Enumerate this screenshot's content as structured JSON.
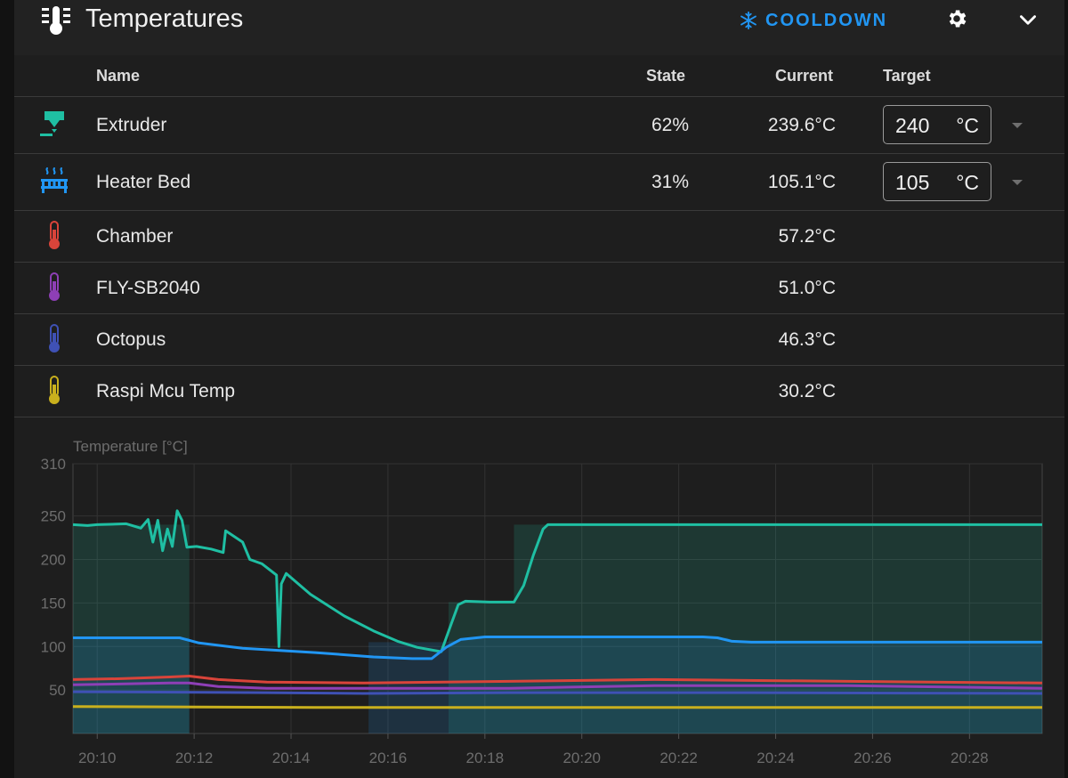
{
  "header": {
    "title": "Temperatures",
    "cooldown_label": "COOLDOWN",
    "icons": [
      "thermometer-lines-icon",
      "snowflake-icon",
      "gear-icon",
      "chevron-down-icon"
    ]
  },
  "table": {
    "columns": {
      "name": "Name",
      "state": "State",
      "current": "Current",
      "target": "Target"
    },
    "rows": [
      {
        "icon": "extruder-icon",
        "color": "#1fbfa3",
        "name": "Extruder",
        "state": "62%",
        "current": "239.6°C",
        "target": "240",
        "unit": "°C"
      },
      {
        "icon": "heater-bed-icon",
        "color": "#2196f3",
        "name": "Heater Bed",
        "state": "31%",
        "current": "105.1°C",
        "target": "105",
        "unit": "°C"
      },
      {
        "icon": "thermometer-icon",
        "color": "#d9443a",
        "name": "Chamber",
        "current": "57.2°C"
      },
      {
        "icon": "thermometer-icon",
        "color": "#8e3fb6",
        "name": "FLY-SB2040",
        "current": "51.0°C"
      },
      {
        "icon": "thermometer-icon",
        "color": "#3f51b5",
        "name": "Octopus",
        "current": "46.3°C"
      },
      {
        "icon": "thermometer-icon",
        "color": "#c9b01d",
        "name": "Raspi Mcu Temp",
        "current": "30.2°C"
      }
    ]
  },
  "chart_data": {
    "type": "line",
    "ylabel": "Temperature [°C]",
    "ylim": [
      0,
      310
    ],
    "yticks": [
      50,
      100,
      150,
      200,
      250,
      310
    ],
    "xlim": [
      "20:09.5",
      "20:29.5"
    ],
    "xticks": [
      "20:10",
      "20:12",
      "20:14",
      "20:16",
      "20:18",
      "20:20",
      "20:22",
      "20:24",
      "20:26",
      "20:28"
    ],
    "grid": true,
    "series": [
      {
        "color": "#1fbfa3",
        "points": [
          [
            0,
            240
          ],
          [
            0.3,
            239
          ],
          [
            0.5,
            240
          ],
          [
            1.1,
            241
          ],
          [
            1.4,
            236
          ],
          [
            1.55,
            246
          ],
          [
            1.65,
            220
          ],
          [
            1.75,
            245
          ],
          [
            1.85,
            210
          ],
          [
            1.95,
            235
          ],
          [
            2.05,
            215
          ],
          [
            2.15,
            256
          ],
          [
            2.25,
            245
          ],
          [
            2.35,
            214
          ],
          [
            2.55,
            215
          ],
          [
            2.85,
            212
          ],
          [
            3.1,
            208
          ],
          [
            3.15,
            233
          ],
          [
            3.5,
            220
          ],
          [
            3.65,
            200
          ],
          [
            3.9,
            195
          ],
          [
            4.2,
            182
          ],
          [
            4.25,
            100
          ],
          [
            4.3,
            172
          ],
          [
            4.4,
            184
          ],
          [
            4.9,
            160
          ],
          [
            5.6,
            135
          ],
          [
            6.2,
            118
          ],
          [
            6.7,
            106
          ],
          [
            7.1,
            99
          ],
          [
            7.6,
            94
          ],
          [
            7.8,
            125
          ],
          [
            7.95,
            148
          ],
          [
            8.1,
            152
          ],
          [
            8.6,
            151
          ],
          [
            9.1,
            151
          ],
          [
            9.3,
            170
          ],
          [
            9.5,
            205
          ],
          [
            9.7,
            235
          ],
          [
            9.8,
            240
          ],
          [
            10.5,
            240
          ],
          [
            20,
            240
          ]
        ]
      },
      {
        "color": "#1fbfa3",
        "fill": true,
        "band": [
          [
            0,
            240
          ],
          [
            2.4,
            240
          ],
          [
            2.4,
            0
          ],
          [
            7.75,
            0
          ],
          [
            7.75,
            151
          ],
          [
            9.1,
            151
          ],
          [
            9.1,
            240
          ],
          [
            20,
            240
          ]
        ]
      },
      {
        "color": "#2196f3",
        "points": [
          [
            0,
            110
          ],
          [
            2.2,
            110
          ],
          [
            2.6,
            104
          ],
          [
            3.5,
            98
          ],
          [
            5,
            93
          ],
          [
            6.2,
            88
          ],
          [
            7,
            86
          ],
          [
            7.4,
            86
          ],
          [
            7.7,
            99
          ],
          [
            8,
            108
          ],
          [
            8.5,
            111
          ],
          [
            10,
            111
          ],
          [
            13,
            111
          ],
          [
            13.3,
            110
          ],
          [
            13.6,
            106
          ],
          [
            14,
            105
          ],
          [
            16,
            105
          ],
          [
            20,
            105
          ]
        ]
      },
      {
        "color": "#2196f3",
        "fill": true,
        "band": [
          [
            0,
            110
          ],
          [
            2.4,
            110
          ],
          [
            2.4,
            0
          ],
          [
            6.1,
            0
          ],
          [
            6.1,
            105
          ],
          [
            7.6,
            105
          ],
          [
            8.6,
            110
          ],
          [
            13.5,
            110
          ],
          [
            13.7,
            105
          ],
          [
            20,
            105
          ]
        ]
      },
      {
        "color": "#d9443a",
        "points": [
          [
            0,
            62
          ],
          [
            1,
            63
          ],
          [
            2,
            65
          ],
          [
            2.4,
            66
          ],
          [
            3,
            62
          ],
          [
            4,
            59
          ],
          [
            6,
            58
          ],
          [
            9,
            60
          ],
          [
            12,
            62
          ],
          [
            16,
            60
          ],
          [
            20,
            58
          ]
        ]
      },
      {
        "color": "#8e3fb6",
        "points": [
          [
            0,
            56
          ],
          [
            2,
            58
          ],
          [
            2.4,
            58
          ],
          [
            3,
            54
          ],
          [
            4,
            52
          ],
          [
            6,
            52
          ],
          [
            9,
            52
          ],
          [
            12,
            55
          ],
          [
            16,
            55
          ],
          [
            20,
            52
          ]
        ]
      },
      {
        "color": "#3f51b5",
        "points": [
          [
            0,
            48
          ],
          [
            4,
            47
          ],
          [
            6,
            46
          ],
          [
            9,
            47
          ],
          [
            14,
            47
          ],
          [
            20,
            46
          ]
        ]
      },
      {
        "color": "#c9b01d",
        "points": [
          [
            0,
            31
          ],
          [
            5,
            30
          ],
          [
            10,
            30
          ],
          [
            15,
            30
          ],
          [
            20,
            30
          ]
        ]
      }
    ]
  }
}
